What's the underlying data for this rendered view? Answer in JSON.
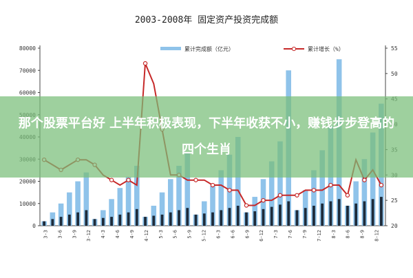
{
  "chart_data": {
    "type": "bar",
    "title": "2003-2008年 固定资产投资完成额",
    "categories": [
      "2003-1",
      "2003-3",
      "2003-5",
      "2003-7",
      "2003-9",
      "2003-11",
      "2004-1",
      "2004-3",
      "2004-5",
      "2004-7",
      "2004-9",
      "2004-11",
      "2005-1",
      "2005-3",
      "2005-5",
      "2005-7",
      "2005-9",
      "2005-11",
      "2006-1",
      "2006-3",
      "2006-5",
      "2006-7",
      "2006-9",
      "2006-11",
      "2007-1",
      "2007-3",
      "2007-5",
      "2007-7",
      "2007-9",
      "2007-11",
      "2008-1",
      "2008-3",
      "2008-5",
      "2008-7",
      "2008-9",
      "2008-11",
      "2009-1",
      "2009-3",
      "2009-5",
      "2009-7",
      "2009-9"
    ],
    "tick_labels": [
      "3-3",
      "3-6",
      "3-9",
      "3-12",
      "4-3",
      "4-6",
      "4-9",
      "4-12",
      "5-3",
      "5-6",
      "5-9",
      "5-12",
      "6-3",
      "6-6",
      "6-9",
      "6-12",
      "7-3",
      "7-6",
      "7-9",
      "7-12",
      "8-3",
      "8-6",
      "8-9",
      "8-12"
    ],
    "series": [
      {
        "name": "累计完成额（亿元）",
        "axis": "left",
        "type": "bar",
        "values": [
          2000,
          6000,
          10000,
          15000,
          20000,
          24000,
          3000,
          7000,
          12000,
          17000,
          22000,
          27000,
          4000,
          9000,
          15000,
          21000,
          27000,
          33000,
          5000,
          11000,
          18000,
          25000,
          32000,
          40000,
          6000,
          13000,
          21000,
          29000,
          38000,
          70000,
          7000,
          16000,
          25000,
          34000,
          45000,
          75000,
          9000,
          20000,
          30000,
          42000,
          55000
        ]
      },
      {
        "name": "当月完成额（亿元）",
        "axis": "left",
        "type": "bar",
        "values": [
          2000,
          3000,
          4000,
          5000,
          6000,
          7000,
          3000,
          3500,
          4000,
          5000,
          6000,
          7500,
          4000,
          4500,
          5000,
          6000,
          7000,
          8000,
          5000,
          5500,
          6000,
          7000,
          8000,
          9000,
          6000,
          6500,
          7500,
          8500,
          9500,
          11000,
          7000,
          8000,
          9000,
          10000,
          11000,
          12000,
          9000,
          10000,
          11000,
          12000,
          13000
        ]
      },
      {
        "name": "累计增长（%）",
        "axis": "right",
        "type": "line",
        "values": [
          33,
          32,
          31,
          32,
          33,
          33,
          32,
          30,
          29,
          28,
          29,
          28,
          52,
          48,
          39,
          30,
          30,
          29,
          29,
          29,
          28,
          28,
          27,
          27,
          24,
          24,
          25,
          25,
          26,
          26,
          26,
          27,
          27,
          27,
          28,
          28,
          26,
          33,
          29,
          31,
          28
        ]
      }
    ],
    "ylim_left": [
      0,
      80000
    ],
    "ylim_right": [
      20,
      55
    ],
    "yticks_left": [
      "0",
      "10000",
      "20000",
      "30000",
      "40000",
      "50000",
      "60000",
      "70000",
      "80000"
    ],
    "yticks_right": [
      "20",
      "25",
      "30",
      "35",
      "40",
      "45",
      "50",
      "55"
    ],
    "legend": {
      "bar_label": "累计完成额（亿元）",
      "line_label": "累计增长（%）",
      "position": "top"
    },
    "colors": {
      "bar_cumulative": "#8fc3ea",
      "bar_monthly": "#1e2b3a",
      "line": "#c62828",
      "marker_fill": "#ffffff"
    },
    "grid": false
  },
  "banner": {
    "text": "那个股票平台好 上半年积极表现，下半年收获不小，赚钱步步登高的四个生肖"
  }
}
